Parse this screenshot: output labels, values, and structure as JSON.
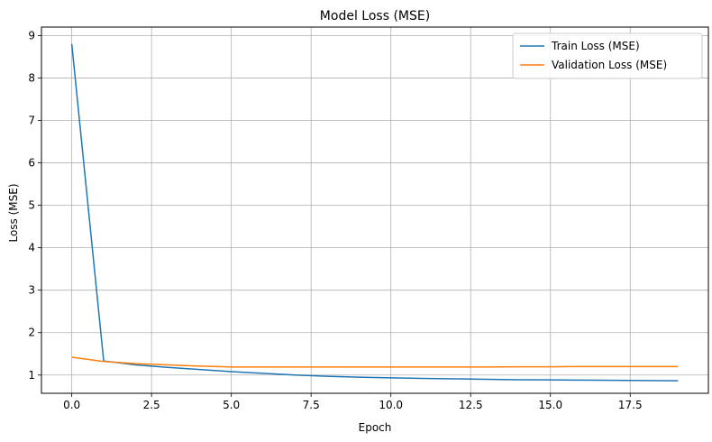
{
  "chart_data": {
    "type": "line",
    "title": "Model Loss (MSE)",
    "xlabel": "Epoch",
    "ylabel": "Loss (MSE)",
    "x": [
      0,
      1,
      2,
      3,
      4,
      5,
      6,
      7,
      8,
      9,
      10,
      11,
      12,
      13,
      14,
      15,
      16,
      17,
      18,
      19
    ],
    "xlim": [
      -0.95,
      19.95
    ],
    "ylim": [
      0.57,
      9.2
    ],
    "xticks": [
      0.0,
      2.5,
      5.0,
      7.5,
      10.0,
      12.5,
      15.0,
      17.5
    ],
    "xtick_labels": [
      "0.0",
      "2.5",
      "5.0",
      "7.5",
      "10.0",
      "12.5",
      "15.0",
      "17.5"
    ],
    "yticks": [
      1,
      2,
      3,
      4,
      5,
      6,
      7,
      8,
      9
    ],
    "ytick_labels": [
      "1",
      "2",
      "3",
      "4",
      "5",
      "6",
      "7",
      "8",
      "9"
    ],
    "grid": true,
    "legend_position": "top-right",
    "series": [
      {
        "name": "Train Loss (MSE)",
        "color": "#1f77b4",
        "values": [
          8.8,
          1.33,
          1.24,
          1.18,
          1.13,
          1.08,
          1.04,
          1.0,
          0.97,
          0.95,
          0.935,
          0.92,
          0.91,
          0.9,
          0.89,
          0.885,
          0.88,
          0.875,
          0.87,
          0.865
        ]
      },
      {
        "name": "Validation Loss (MSE)",
        "color": "#ff7f0e",
        "values": [
          1.42,
          1.32,
          1.27,
          1.24,
          1.21,
          1.19,
          1.19,
          1.19,
          1.19,
          1.19,
          1.19,
          1.19,
          1.19,
          1.19,
          1.195,
          1.195,
          1.2,
          1.2,
          1.2,
          1.2
        ]
      }
    ]
  }
}
